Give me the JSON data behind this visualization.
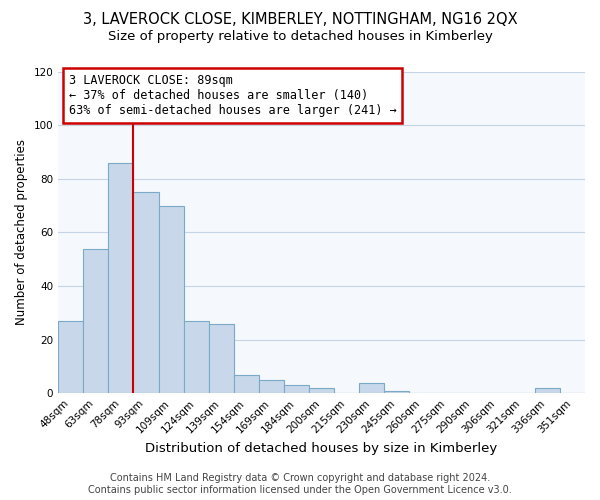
{
  "title": "3, LAVEROCK CLOSE, KIMBERLEY, NOTTINGHAM, NG16 2QX",
  "subtitle": "Size of property relative to detached houses in Kimberley",
  "xlabel": "Distribution of detached houses by size in Kimberley",
  "ylabel": "Number of detached properties",
  "bar_labels": [
    "48sqm",
    "63sqm",
    "78sqm",
    "93sqm",
    "109sqm",
    "124sqm",
    "139sqm",
    "154sqm",
    "169sqm",
    "184sqm",
    "200sqm",
    "215sqm",
    "230sqm",
    "245sqm",
    "260sqm",
    "275sqm",
    "290sqm",
    "306sqm",
    "321sqm",
    "336sqm",
    "351sqm"
  ],
  "bar_values": [
    27,
    54,
    86,
    75,
    70,
    27,
    26,
    7,
    5,
    3,
    2,
    0,
    4,
    1,
    0,
    0,
    0,
    0,
    0,
    2,
    0
  ],
  "bar_color": "#c8d8ea",
  "bar_edge_color": "#7baac8",
  "ylim": [
    0,
    120
  ],
  "yticks": [
    0,
    20,
    40,
    60,
    80,
    100,
    120
  ],
  "property_line_label": "3 LAVEROCK CLOSE: 89sqm",
  "annotation_line1": "← 37% of detached houses are smaller (140)",
  "annotation_line2": "63% of semi-detached houses are larger (241) →",
  "annotation_box_color": "#ffffff",
  "annotation_box_edge": "#cc0000",
  "property_line_color": "#cc0000",
  "footer_line1": "Contains HM Land Registry data © Crown copyright and database right 2024.",
  "footer_line2": "Contains public sector information licensed under the Open Government Licence v3.0.",
  "title_fontsize": 10.5,
  "subtitle_fontsize": 9.5,
  "xlabel_fontsize": 9.5,
  "ylabel_fontsize": 8.5,
  "tick_fontsize": 7.5,
  "annotation_fontsize": 8.5,
  "footer_fontsize": 7
}
